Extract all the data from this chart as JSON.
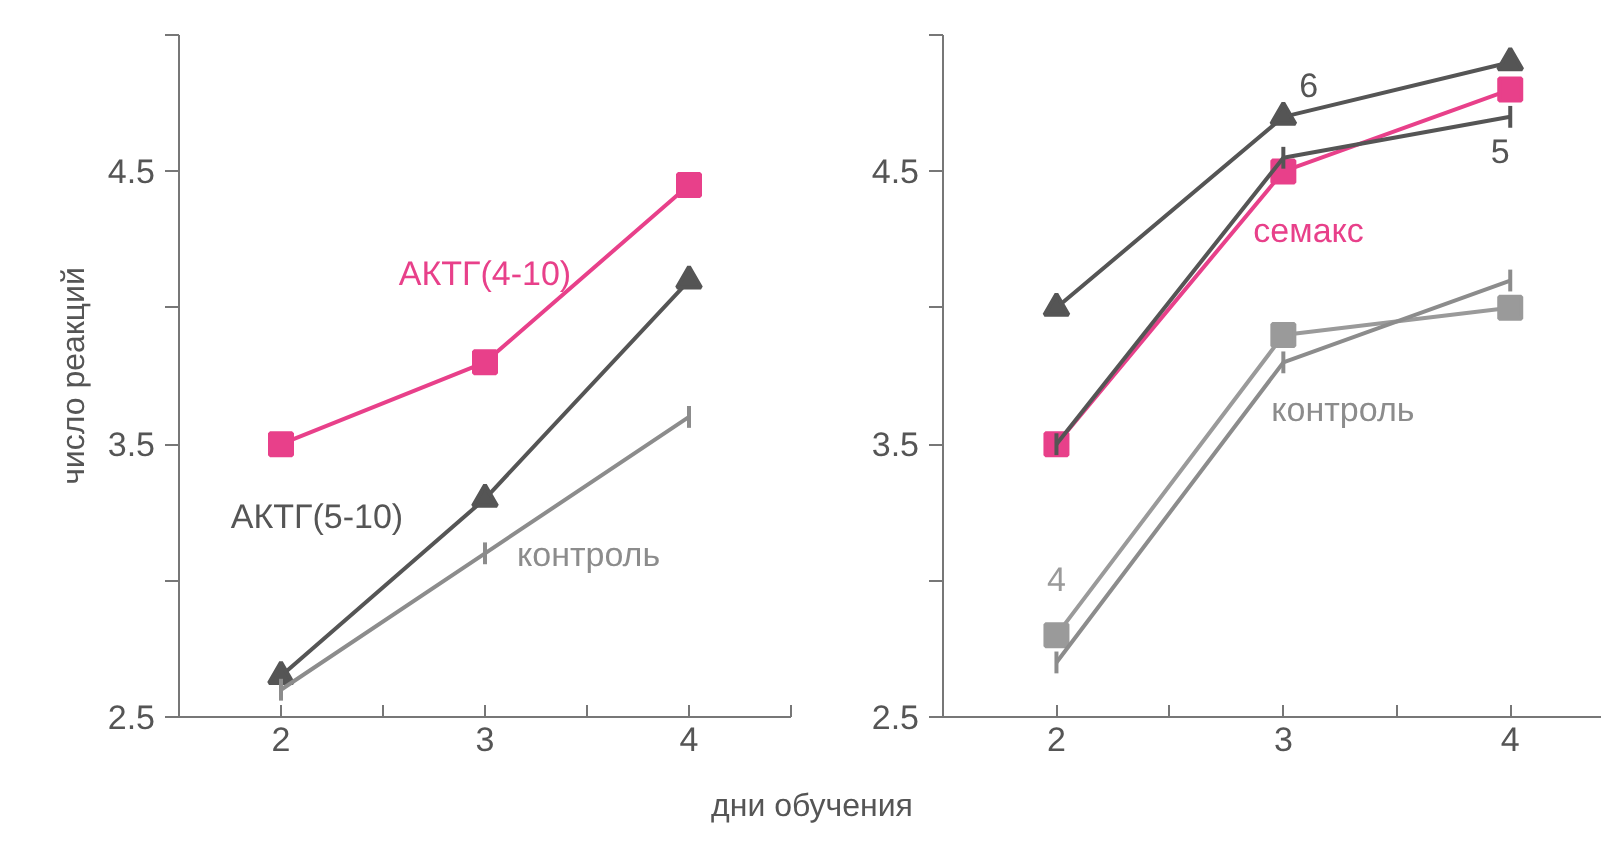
{
  "chart_data": [
    {
      "type": "line",
      "xlabel": "дни обучения",
      "ylabel": "число реакций",
      "x": [
        2,
        3,
        4
      ],
      "xlim": [
        1.5,
        4.5
      ],
      "xticks": [
        2,
        {
          "value": 2.5,
          "label": null
        },
        3,
        {
          "value": 3.5,
          "label": null
        },
        4,
        {
          "value": 4.5,
          "label": null
        }
      ],
      "ylim": [
        2.5,
        5.0
      ],
      "yticks": [
        2.5,
        {
          "value": 3.0,
          "label": null
        },
        3.5,
        {
          "value": 4.0,
          "label": null
        },
        4.5,
        {
          "value": 5.0,
          "label": null
        }
      ],
      "grid": false,
      "series": [
        {
          "name": "АКТГ(4-10)",
          "color": "#e8408a",
          "marker": "square",
          "values": [
            3.5,
            3.8,
            4.45
          ]
        },
        {
          "name": "АКТГ(5-10)",
          "color": "#555555",
          "marker": "triangle",
          "values": [
            2.65,
            3.3,
            4.1
          ]
        },
        {
          "name": "контроль",
          "color": "#8c8c8c",
          "marker": "none",
          "values": [
            2.6,
            3.1,
            3.6
          ],
          "errors": [
            0.04,
            0.04,
            0.04
          ]
        }
      ]
    },
    {
      "type": "line",
      "x": [
        2,
        3,
        4
      ],
      "xlim": [
        1.5,
        4.4
      ],
      "xticks": [
        2,
        {
          "value": 2.5,
          "label": null
        },
        3,
        {
          "value": 3.5,
          "label": null
        },
        4
      ],
      "ylim": [
        2.5,
        5.0
      ],
      "yticks": [
        2.5,
        {
          "value": 3.0,
          "label": null
        },
        3.5,
        {
          "value": 4.0,
          "label": null
        },
        4.5,
        {
          "value": 5.0,
          "label": null
        }
      ],
      "grid": false,
      "series": [
        {
          "name": "6",
          "color": "#555555",
          "marker": "triangle",
          "values": [
            4.0,
            4.7,
            4.9
          ]
        },
        {
          "name": "семакс",
          "color": "#e8408a",
          "marker": "square",
          "values": [
            3.5,
            4.5,
            4.8
          ]
        },
        {
          "name": "5",
          "color": "#555555",
          "marker": "none",
          "values": [
            3.5,
            4.55,
            4.7
          ],
          "errors": [
            0.04,
            0.04,
            0.04
          ]
        },
        {
          "name": "4",
          "color": "#9a9a9a",
          "marker": "square",
          "values": [
            2.8,
            3.9,
            4.0
          ]
        },
        {
          "name": "контроль",
          "color": "#8c8c8c",
          "marker": "none",
          "values": [
            2.7,
            3.8,
            4.1
          ],
          "errors": [
            0.04,
            0.04,
            0.04
          ]
        }
      ]
    }
  ]
}
